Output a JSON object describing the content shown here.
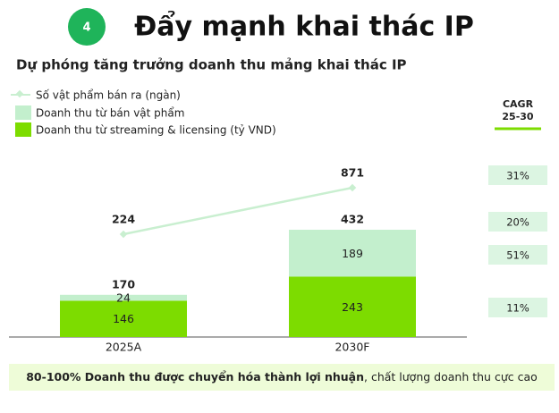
{
  "header": {
    "badge": "4",
    "title": "Đẩy mạnh khai thác IP"
  },
  "chart_data": {
    "type": "stacked-bar-line",
    "title": "Dự phóng tăng trưởng doanh thu mảng khai thác IP",
    "categories": [
      "2025A",
      "2030F"
    ],
    "series": [
      {
        "name": "Doanh thu từ streaming & licensing (tỷ VND)",
        "color": "#7ddc00",
        "values": [
          146,
          243
        ]
      },
      {
        "name": "Doanh thu từ bán vật phẩm",
        "color": "#c3efcd",
        "values": [
          24,
          189
        ]
      }
    ],
    "totals": [
      170,
      432
    ],
    "line": {
      "name": "Số vật phẩm bán ra (ngàn)",
      "color": "#c9efd0",
      "values": [
        224,
        871
      ]
    },
    "cagr": {
      "title": "CAGR",
      "subtitle": "25-30",
      "values": [
        31,
        20,
        51,
        11
      ],
      "value_labels": [
        "31%",
        "20%",
        "51%",
        "11%"
      ],
      "color": "#dcf5e2"
    }
  },
  "footer": {
    "bold": "80-100% Doanh thu được chuyển hóa thành lợi nhuận",
    "rest": ", chất lượng doanh thu cực cao"
  }
}
